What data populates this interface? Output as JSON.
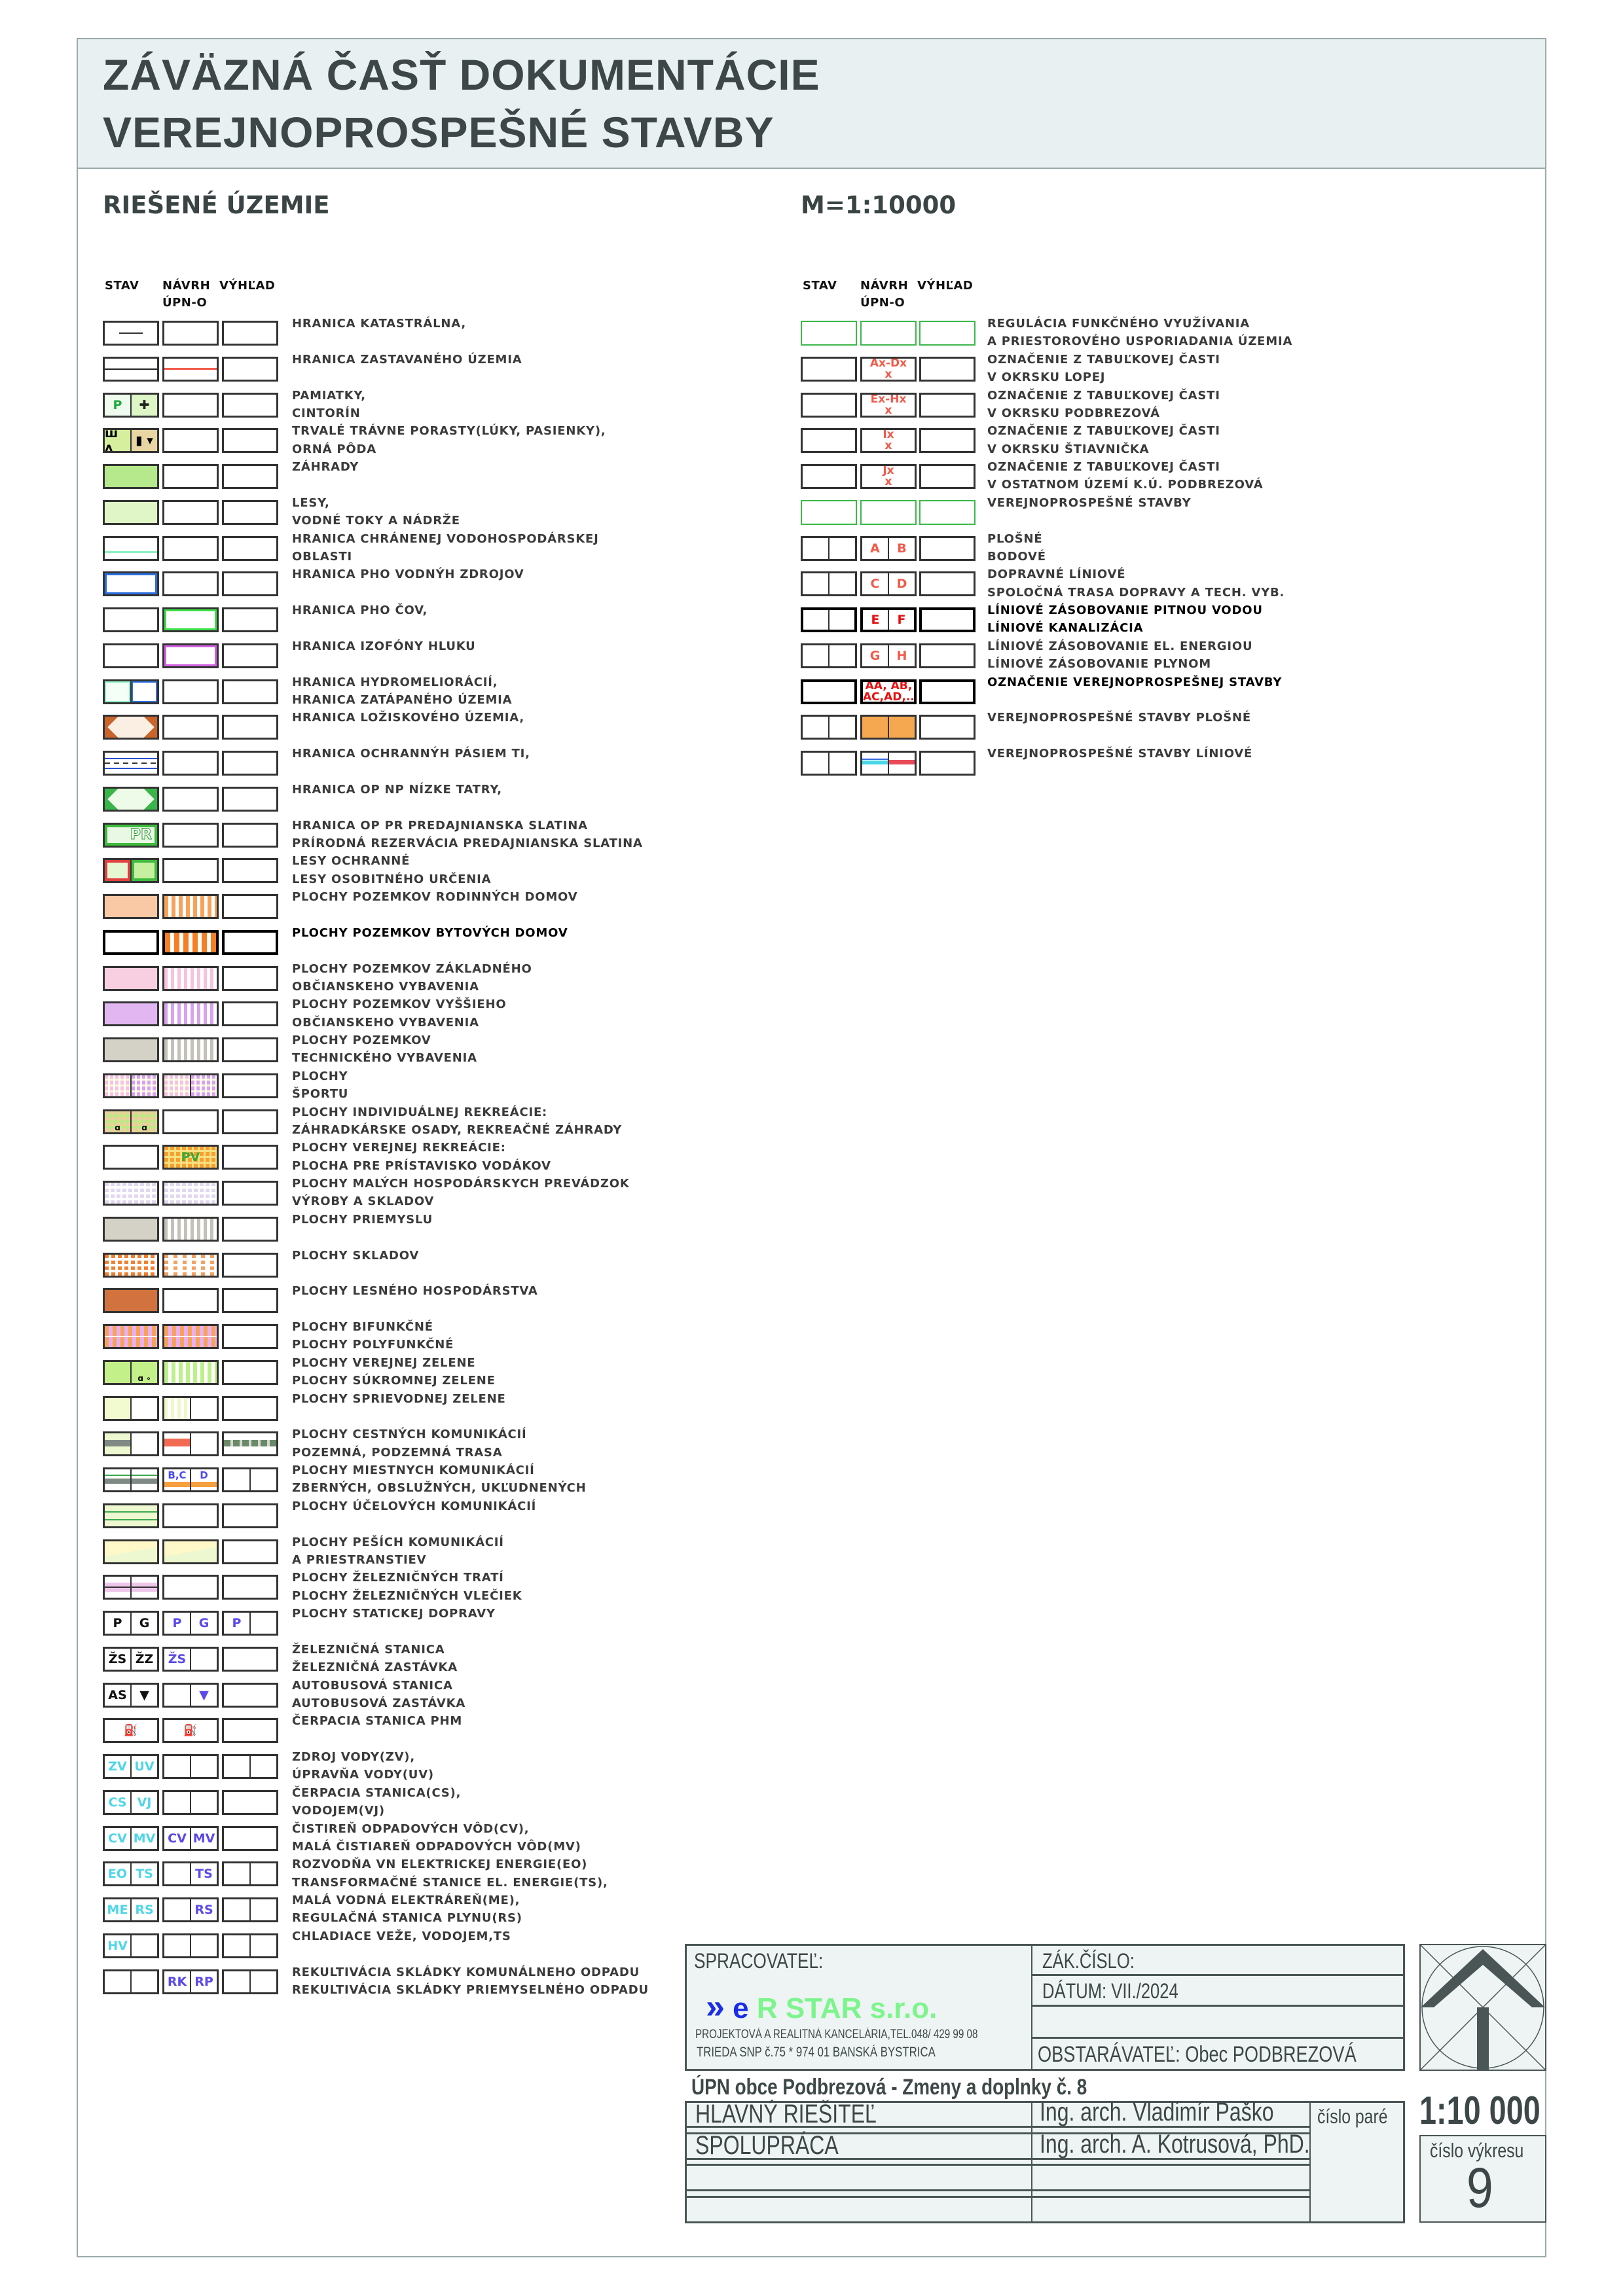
{
  "header": {
    "title_line1": "ZÁVÄZNÁ ČASŤ DOKUMENTÁCIE",
    "title_line2": "VEREJNOPROSPEŠNÉ STAVBY"
  },
  "section_title": "RIEŠENÉ ÚZEMIE",
  "scale_label": "M=1:10000",
  "column_headers": {
    "stav": "STAV",
    "navrh": "NÁVRH",
    "navrh_sub": "ÚPN-O",
    "vyhlad": "VÝHĽAD"
  },
  "left_rows": [
    {
      "sw": [
        {
          "k": "dots"
        },
        {},
        {}
      ],
      "lines": [
        "HRANICA KATASTRÁLNA,"
      ]
    },
    {
      "sw": [
        {
          "k": "zast"
        },
        {
          "k": "zast-red"
        },
        {}
      ],
      "lines": [
        "HRANICA ZASTAVANÉHO ÚZEMIA"
      ]
    },
    {
      "sw": [
        {
          "k": "pamiatky",
          "t": [
            "P",
            "✚"
          ]
        },
        {},
        {}
      ],
      "lines": [
        "PAMIATKY,",
        "CINTORÍN"
      ]
    },
    {
      "sw": [
        {
          "k": "meadow",
          "t": [
            "ш ʌ",
            "▮ ▾"
          ]
        },
        {},
        {}
      ],
      "lines": [
        "TRVALÉ TRÁVNE PORASTY(LÚKY, PASIENKY),",
        "ORNÁ PÔDA"
      ]
    },
    {
      "sw": [
        {
          "k": "garden"
        },
        {},
        {}
      ],
      "lines": [
        "ZÁHRADY"
      ]
    },
    {
      "sw": [
        {
          "k": "forest"
        },
        {},
        {}
      ],
      "lines": [
        "LESY,",
        "VODNÉ TOKY A NÁDRŽE"
      ]
    },
    {
      "sw": [
        {
          "k": "mint"
        },
        {},
        {}
      ],
      "lines": [
        "HRANICA CHRÁNENEJ VODOHOSPODÁRSKEJ",
        "OBLASTI"
      ]
    },
    {
      "sw": [
        {
          "k": "blue"
        },
        {},
        {}
      ],
      "lines": [
        "HRANICA PHO VODNÝH ZDROJOV"
      ]
    },
    {
      "sw": [
        {},
        {
          "k": "greenb"
        },
        {}
      ],
      "lines": [
        "HRANICA PHO ČOV,"
      ]
    },
    {
      "sw": [
        {},
        {
          "k": "magenta"
        },
        {}
      ],
      "lines": [
        "HRANICA IZOFÓNY HLUKU"
      ]
    },
    {
      "sw": [
        {
          "k": "hydro",
          "t": [
            "",
            ""
          ]
        },
        {},
        {}
      ],
      "lines": [
        "HRANICA HYDROMELIORÁCIÍ,",
        "HRANICA ZATÁPANÉHO ÚZEMIA"
      ]
    },
    {
      "sw": [
        {
          "k": "otri"
        },
        {},
        {}
      ],
      "lines": [
        "HRANICA LOŽISKOVÉHO ÚZEMIA,"
      ]
    },
    {
      "sw": [
        {
          "k": "tiline"
        },
        {},
        {}
      ],
      "lines": [
        "HRANICA OCHRANNÝH PÁSIEM TI,"
      ]
    },
    {
      "sw": [
        {
          "k": "gtri"
        },
        {},
        {}
      ],
      "lines": [
        "HRANICA OP NP NÍZKE TATRY,"
      ]
    },
    {
      "sw": [
        {
          "k": "pr",
          "c": "PR"
        },
        {},
        {}
      ],
      "lines": [
        "HRANICA OP PR PREDAJNIANSKA SLATINA",
        "PRÍRODNÁ REZERVÁCIA PREDAJNIANSKA SLATINA"
      ]
    },
    {
      "sw": [
        {
          "k": "lesyochr",
          "t": [
            "",
            ""
          ]
        },
        {},
        {}
      ],
      "lines": [
        "LESY OCHRANNÉ",
        "LESY OSOBITNÉHO URČENIA"
      ]
    },
    {
      "sw": [
        {
          "k": "peach"
        },
        {
          "k": "ostripe-l"
        },
        {}
      ],
      "lines": [
        "PLOCHY POZEMKOV RODINNÝCH DOMOV"
      ]
    },
    {
      "sw": [
        {
          "b": 1
        },
        {
          "k": "ostripe",
          "b": 1
        },
        {
          "b": 1
        }
      ],
      "lines": [
        "PLOCHY POZEMKOV BYTOVÝCH DOMOV"
      ],
      "emph": true
    },
    {
      "sw": [
        {
          "k": "pink"
        },
        {
          "k": "pstripe"
        },
        {}
      ],
      "lines": [
        "PLOCHY POZEMKOV ZÁKLADNÉHO",
        "OBČIANSKEHO VYBAVENIA"
      ]
    },
    {
      "sw": [
        {
          "k": "lilac"
        },
        {
          "k": "lstripe"
        },
        {}
      ],
      "lines": [
        "PLOCHY POZEMKOV VYŠŠIEHO",
        "OBČIANSKEHO VYBAVENIA"
      ]
    },
    {
      "sw": [
        {
          "k": "gray"
        },
        {
          "k": "gstripe"
        },
        {}
      ],
      "lines": [
        "PLOCHY POZEMKOV",
        "TECHNICKÉHO VYBAVENIA"
      ]
    },
    {
      "sw": [
        {
          "k": "sport",
          "t": [
            "",
            ""
          ]
        },
        {
          "k": "sport",
          "t": [
            "",
            ""
          ]
        },
        {}
      ],
      "lines": [
        "PLOCHY",
        "ŠPORTU"
      ]
    },
    {
      "sw": [
        {
          "k": "indiv",
          "t": [
            "ɑ",
            "ɑ"
          ]
        },
        {},
        {}
      ],
      "lines": [
        "PLOCHY INDIVIDUÁLNEJ REKREÁCIE:",
        "ZÁHRADKÁRSKE OSADY, REKREAČNÉ ZÁHRADY"
      ]
    },
    {
      "sw": [
        {},
        {
          "k": "pv",
          "c": "PV"
        },
        {}
      ],
      "lines": [
        "PLOCHY VEREJNEJ REKREÁCIE:",
        "PLOCHA PRE PRÍSTAVISKO VODÁKOV"
      ]
    },
    {
      "sw": [
        {
          "k": "malych"
        },
        {
          "k": "malych"
        },
        {}
      ],
      "lines": [
        "PLOCHY MALÝCH HOSPODÁRSKYCH PREVÁDZOK",
        "VÝROBY A SKLADOV"
      ]
    },
    {
      "sw": [
        {
          "k": "gray"
        },
        {
          "k": "gstripe"
        },
        {}
      ],
      "lines": [
        "PLOCHY PRIEMYSLU"
      ]
    },
    {
      "sw": [
        {
          "k": "skladov"
        },
        {
          "k": "skladov-l"
        },
        {}
      ],
      "lines": [
        "PLOCHY SKLADOV"
      ]
    },
    {
      "sw": [
        {
          "k": "brown"
        },
        {},
        {}
      ],
      "lines": [
        "PLOCHY LESNÉHO HOSPODÁRSTVA"
      ]
    },
    {
      "sw": [
        {
          "k": "bifunk"
        },
        {
          "k": "bifunk"
        },
        {}
      ],
      "lines": [
        "PLOCHY BIFUNKČNÉ",
        "PLOCHY POLYFUNKČNÉ"
      ]
    },
    {
      "sw": [
        {
          "k": "zelen",
          "t": [
            "",
            "ɑ ∘"
          ]
        },
        {
          "k": "gstripe2"
        },
        {}
      ],
      "lines": [
        "PLOCHY VEREJNEJ ZELENE",
        "PLOCHY SÚKROMNEJ ZELENE"
      ]
    },
    {
      "sw": [
        {
          "k": "pale",
          "t": [
            "",
            ""
          ]
        },
        {
          "k": "palestripe",
          "t": [
            "",
            ""
          ]
        },
        {}
      ],
      "lines": [
        "PLOCHY SPRIEVODNEJ ZELENE"
      ]
    },
    {
      "sw": [
        {
          "k": "road",
          "t": [
            "",
            ""
          ]
        },
        {
          "k": "roadred",
          "t": [
            "",
            ""
          ]
        },
        {
          "k": "roaddash"
        }
      ],
      "lines": [
        "PLOCHY CESTNÝCH KOMUNIKÁCIÍ",
        "POZEMNÁ, PODZEMNÁ TRASA"
      ]
    },
    {
      "sw": [
        {
          "k": "mroad",
          "t": [
            "",
            ""
          ]
        },
        {
          "k": "morange",
          "t": [
            "B,C",
            "D"
          ]
        },
        {
          "t": [
            "",
            ""
          ]
        }
      ],
      "lines": [
        "PLOCHY MIESTNYCH KOMUNIKÁCIÍ",
        "ZBERNÝCH, OBSLUŽNÝCH, UKĽUDNENÝCH"
      ]
    },
    {
      "sw": [
        {
          "k": "ucel"
        },
        {},
        {}
      ],
      "lines": [
        "PLOCHY ÚČELOVÝCH KOMUNIKÁCIÍ"
      ]
    },
    {
      "sw": [
        {
          "k": "pesi"
        },
        {
          "k": "pesi"
        },
        {}
      ],
      "lines": [
        "PLOCHY PEŠÍCH KOMUNIKÁCIÍ",
        "A PRIESTRANSTIEV"
      ]
    },
    {
      "sw": [
        {
          "k": "rail",
          "t": [
            "",
            ""
          ]
        },
        {},
        {}
      ],
      "lines": [
        "PLOCHY ŽELEZNIČNÝCH TRATÍ",
        "PLOCHY ŽELEZNIČNÝCH VLEČIEK"
      ]
    },
    {
      "sw": [
        {
          "t": [
            "P",
            "G"
          ],
          "col": "black"
        },
        {
          "t": [
            "P",
            "G"
          ],
          "col": "blue"
        },
        {
          "t": [
            "P",
            ""
          ],
          "col": "blue"
        }
      ],
      "lines": [
        "PLOCHY STATICKEJ DOPRAVY"
      ]
    },
    {
      "sw": [
        {
          "t": [
            "ŽS",
            "ŽZ"
          ],
          "col": "black"
        },
        {
          "t": [
            "ŽS",
            ""
          ],
          "col": "blue"
        },
        {}
      ],
      "lines": [
        "ŽELEZNIČNÁ STANICA",
        "ŽELEZNIČNÁ ZASTÁVKA"
      ]
    },
    {
      "sw": [
        {
          "t": [
            "AS",
            "▼"
          ],
          "col": "black"
        },
        {
          "t": [
            "",
            "▼"
          ],
          "col": "blue"
        },
        {}
      ],
      "lines": [
        "AUTOBUSOVÁ STANICA",
        "AUTOBUSOVÁ ZASTÁVKA"
      ]
    },
    {
      "sw": [
        {
          "c": "⛽",
          "col": "black"
        },
        {
          "c": "⛽",
          "col": "black"
        },
        {}
      ],
      "lines": [
        "ČERPACIA STANICA PHM"
      ]
    },
    {
      "sw": [
        {
          "t": [
            "ZV",
            "UV"
          ],
          "col": "cyan"
        },
        {
          "t": [
            "",
            ""
          ]
        },
        {
          "t": [
            "",
            ""
          ]
        }
      ],
      "lines": [
        "ZDROJ VODY(ZV),",
        "ÚPRAVŇA VODY(UV)"
      ]
    },
    {
      "sw": [
        {
          "t": [
            "CS",
            "VJ"
          ],
          "col": "cyan"
        },
        {
          "t": [
            "",
            ""
          ]
        },
        {}
      ],
      "lines": [
        "ČERPACIA STANICA(CS),",
        "VODOJEM(VJ)"
      ]
    },
    {
      "sw": [
        {
          "t": [
            "CV",
            "MV"
          ],
          "col": "cyan"
        },
        {
          "t": [
            "CV",
            "MV"
          ],
          "col": "blue"
        },
        {}
      ],
      "lines": [
        "ČISTIREŇ ODPADOVÝCH VÔD(CV),",
        "MALÁ ČISTIAREŇ ODPADOVÝCH VÔD(MV)"
      ]
    },
    {
      "sw": [
        {
          "t": [
            "EO",
            "TS"
          ],
          "col": "cyan"
        },
        {
          "t": [
            "",
            "TS"
          ],
          "col": "blue"
        },
        {
          "t": [
            "",
            ""
          ]
        }
      ],
      "lines": [
        "ROZVODŇA VN ELEKTRICKEJ ENERGIE(EO)",
        "TRANSFORMAČNÉ STANICE EL. ENERGIE(TS),"
      ]
    },
    {
      "sw": [
        {
          "t": [
            "ME",
            "RS"
          ],
          "col": "cyan"
        },
        {
          "t": [
            "",
            "RS"
          ],
          "col": "blue"
        },
        {
          "t": [
            "",
            ""
          ]
        }
      ],
      "lines": [
        "MALÁ VODNÁ ELEKTRÁREŇ(ME),",
        "REGULAČNÁ STANICA PLYNU(RS)"
      ]
    },
    {
      "sw": [
        {
          "t": [
            "HV",
            ""
          ],
          "col": "cyan"
        },
        {
          "t": [
            "",
            ""
          ]
        },
        {
          "t": [
            "",
            ""
          ]
        }
      ],
      "lines": [
        "CHLADIACE VEŽE, VODOJEM,TS"
      ]
    },
    {
      "sw": [
        {
          "t": [
            "",
            ""
          ]
        },
        {
          "t": [
            "RK",
            "RP"
          ],
          "col": "blue"
        },
        {
          "t": [
            "",
            ""
          ]
        }
      ],
      "lines": [
        "REKULTIVÁCIA SKLÁDKY KOMUNÁLNEHO ODPADU",
        "REKULTIVÁCIA SKLÁDKY PRIEMYSELNÉHO ODPADU"
      ]
    }
  ],
  "right_rows": [
    {
      "sw": [
        {
          "k": "gborder"
        },
        {
          "k": "gborder"
        },
        {
          "k": "gborder"
        }
      ],
      "lines": [
        "REGULÁCIA FUNKČNÉHO VYUŽÍVANIA",
        "A PRIESTOROVÉHO USPORIADANIA ÚZEMIA"
      ]
    },
    {
      "sw": [
        {},
        {
          "c": "Ax-Dx",
          "c2": "x",
          "col": "red"
        },
        {}
      ],
      "lines": [
        "OZNAČENIE Z TABUĽKOVEJ ČASTI",
        "V OKRSKU LOPEJ"
      ]
    },
    {
      "sw": [
        {},
        {
          "c": "Ex-Hx",
          "c2": "x",
          "col": "red"
        },
        {}
      ],
      "lines": [
        "OZNAČENIE Z TABUĽKOVEJ ČASTI",
        "V OKRSKU PODBREZOVÁ"
      ]
    },
    {
      "sw": [
        {},
        {
          "c": "Ix",
          "c2": "x",
          "col": "red"
        },
        {}
      ],
      "lines": [
        "OZNAČENIE Z TABUĽKOVEJ ČASTI",
        "V OKRSKU ŠTIAVNIČKA"
      ]
    },
    {
      "sw": [
        {},
        {
          "c": "Jx",
          "c2": "x",
          "col": "red"
        },
        {}
      ],
      "lines": [
        "OZNAČENIE Z TABUĽKOVEJ ČASTI",
        "V OSTATNOM ÚZEMÍ  K.Ú. PODBREZOVÁ"
      ]
    },
    {
      "sw": [
        {
          "k": "gborder"
        },
        {
          "k": "gborder"
        },
        {
          "k": "gborder"
        }
      ],
      "lines": [
        "VEREJNOPROSPEŠNÉ STAVBY"
      ]
    },
    {
      "sw": [
        {
          "t": [
            "",
            ""
          ]
        },
        {
          "t": [
            "A",
            "B"
          ],
          "col": "red"
        },
        {}
      ],
      "lines": [
        "PLOŠNÉ",
        "BODOVÉ"
      ]
    },
    {
      "sw": [
        {
          "t": [
            "",
            ""
          ]
        },
        {
          "t": [
            "C",
            "D"
          ],
          "col": "red"
        },
        {}
      ],
      "lines": [
        "DOPRAVNÉ LÍNIOVÉ",
        "SPOLOČNÁ TRASA DOPRAVY A TECH. VYB."
      ]
    },
    {
      "sw": [
        {
          "t": [
            "",
            ""
          ],
          "b": 1
        },
        {
          "t": [
            "E",
            "F"
          ],
          "col": "redb",
          "b": 1
        },
        {
          "b": 1
        }
      ],
      "lines": [
        "LÍNIOVÉ ZÁSOBOVANIE PITNOU VODOU",
        "LÍNIOVÉ KANALIZÁCIA"
      ],
      "emph": true
    },
    {
      "sw": [
        {
          "t": [
            "",
            ""
          ]
        },
        {
          "t": [
            "G",
            "H"
          ],
          "col": "red"
        },
        {}
      ],
      "lines": [
        "LÍNIOVÉ ZÁSOBOVANIE EL. ENERGIOU",
        "LÍNIOVÉ ZÁSOBOVANIE PLYNOM"
      ]
    },
    {
      "sw": [
        {
          "b": 1
        },
        {
          "c": "AA, AB,",
          "c2": "AC,AD,..",
          "col": "redb",
          "b": 1
        },
        {
          "b": 1
        }
      ],
      "lines": [
        "OZNAČENIE VEREJNOPROSPEŠNEJ STAVBY"
      ],
      "emph": true
    },
    {
      "sw": [
        {
          "t": [
            "",
            ""
          ]
        },
        {
          "k": "orange",
          "t": [
            "",
            ""
          ]
        },
        {}
      ],
      "lines": [
        "VEREJNOPROSPEŠNÉ STAVBY PLOŠNÉ"
      ]
    },
    {
      "sw": [
        {
          "t": [
            "",
            ""
          ]
        },
        {
          "k": "linie",
          "t": [
            "",
            ""
          ]
        },
        {}
      ],
      "lines": [
        "VEREJNOPROSPEŠNÉ STAVBY LÍNIOVÉ"
      ]
    }
  ],
  "title_block": {
    "processor_label": "SPRACOVATEĽ:",
    "logo_e": "e",
    "logo_name": "R STAR s.r.o.",
    "company_line1": "PROJEKTOVÁ A REALITNÁ KANCELÁRIA,TEL.048/  429 99 08",
    "company_line2": "TRIEDA SNP  č.75 * 974 01 BANSKÁ BYSTRICA",
    "order_number_label": "ZÁK.ČÍSLO:",
    "date_label": "DÁTUM: VII./2024",
    "client_label": "OBSTARÁVATEĽ: Obec PODBREZOVÁ",
    "project_title": "ÚPN obce Podbrezová - Zmeny a doplnky č. 8",
    "chief_label": "HLAVNÝ RIEŠITEĽ",
    "chief_name": "Ing. arch. Vladimír Paško",
    "coop_label": "SPOLUPRÁCA",
    "coop_name": "Ing. arch. A. Kotrusová, PhD.",
    "copy_number_label": "číslo paré",
    "scale": "1:10 000",
    "drawing_number_label": "číslo výkresu",
    "drawing_number": "9"
  },
  "colors": {
    "header_bg": "#e9f0f1",
    "text_dark": "#3d4747",
    "logo_blue": "#1a2ee8",
    "logo_green": "#7cf58c"
  }
}
